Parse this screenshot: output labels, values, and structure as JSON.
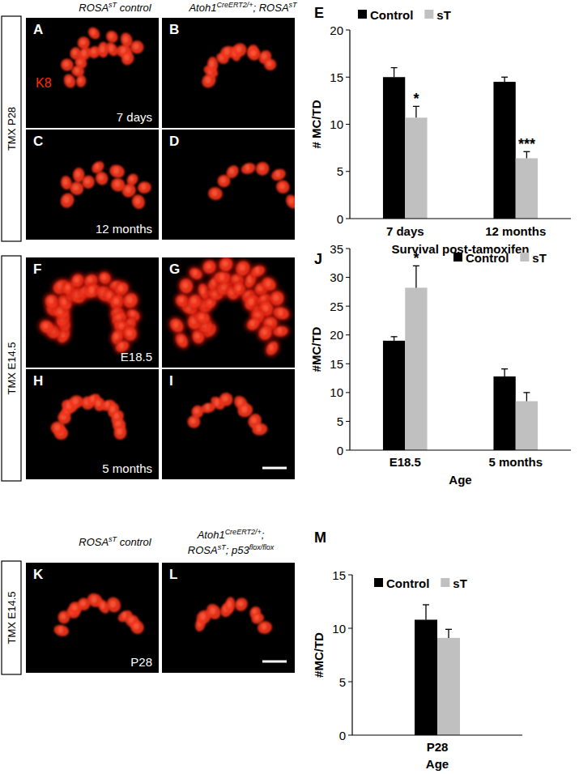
{
  "figure": {
    "headers_top": [
      [
        [
          {
            "t": "ROSA"
          },
          {
            "t": "sT",
            "sup": true
          },
          {
            "t": " control"
          }
        ]
      ],
      [
        [
          {
            "t": "Atoh1"
          },
          {
            "t": "CreERT2/+",
            "sup": true
          },
          {
            "t": "; ROSA"
          },
          {
            "t": "sT",
            "sup": true
          }
        ]
      ]
    ],
    "headers_bottom": [
      [
        [
          {
            "t": "ROSA"
          },
          {
            "t": "sT",
            "sup": true
          },
          {
            "t": " control"
          }
        ]
      ],
      [
        [
          {
            "t": "Atoh1"
          },
          {
            "t": "CreERT2/+",
            "sup": true
          },
          {
            "t": ";"
          }
        ],
        [
          {
            "t": "ROSA"
          },
          {
            "t": "sT",
            "sup": true
          },
          {
            "t": "; p53"
          },
          {
            "t": "flox/flox",
            "sup": true
          }
        ]
      ]
    ],
    "side_labels": [
      "TMX P28",
      "TMX E14.5",
      "TMX E14.5"
    ],
    "panels": [
      {
        "label": "A",
        "stain": "K8",
        "caption": "7 days"
      },
      {
        "label": "B"
      },
      {
        "label": "C",
        "caption": "12 months"
      },
      {
        "label": "D"
      },
      {
        "label": "F",
        "caption": "E18.5"
      },
      {
        "label": "G"
      },
      {
        "label": "H",
        "caption": "5 months"
      },
      {
        "label": "I"
      },
      {
        "label": "K",
        "caption": "P28"
      },
      {
        "label": "L"
      }
    ]
  },
  "chart_data": [
    {
      "panel_label": "E",
      "type": "bar",
      "categories": [
        "7 days",
        "12 months"
      ],
      "x_label": "Survival post-tamoxifen",
      "y_label": "# MC/TD",
      "ylim": [
        0,
        20
      ],
      "yticks": [
        0,
        5,
        10,
        15,
        20
      ],
      "legend": "top",
      "series": [
        {
          "name": "Control",
          "color": "#000000",
          "values": [
            15,
            14.5
          ],
          "errors": [
            1.0,
            0.5
          ]
        },
        {
          "name": "sT",
          "color": "#c0c0c0",
          "values": [
            10.7,
            6.4
          ],
          "errors": [
            1.2,
            0.7
          ],
          "significance": [
            "*",
            "***"
          ]
        }
      ]
    },
    {
      "panel_label": "J",
      "type": "bar",
      "categories": [
        "E18.5",
        "5 months"
      ],
      "x_label": "Age",
      "y_label": "#MC/TD",
      "ylim": [
        0,
        35
      ],
      "yticks": [
        0,
        5,
        10,
        15,
        20,
        25,
        30,
        35
      ],
      "legend": "top",
      "series": [
        {
          "name": "Control",
          "color": "#000000",
          "values": [
            19,
            12.8
          ],
          "errors": [
            0.7,
            1.3
          ]
        },
        {
          "name": "sT",
          "color": "#c0c0c0",
          "values": [
            28.2,
            8.5
          ],
          "errors": [
            3.8,
            1.5
          ],
          "significance": [
            "*",
            null
          ]
        }
      ]
    },
    {
      "panel_label": "M",
      "type": "bar",
      "categories": [
        "P28"
      ],
      "x_label": "Age",
      "y_label": "#MC/TD",
      "ylim": [
        0,
        15
      ],
      "yticks": [
        0,
        5,
        10,
        15
      ],
      "legend": "top",
      "series": [
        {
          "name": "Control",
          "color": "#000000",
          "values": [
            10.8
          ],
          "errors": [
            1.4
          ]
        },
        {
          "name": "sT",
          "color": "#c0c0c0",
          "values": [
            9.1
          ],
          "errors": [
            0.8
          ]
        }
      ]
    }
  ]
}
